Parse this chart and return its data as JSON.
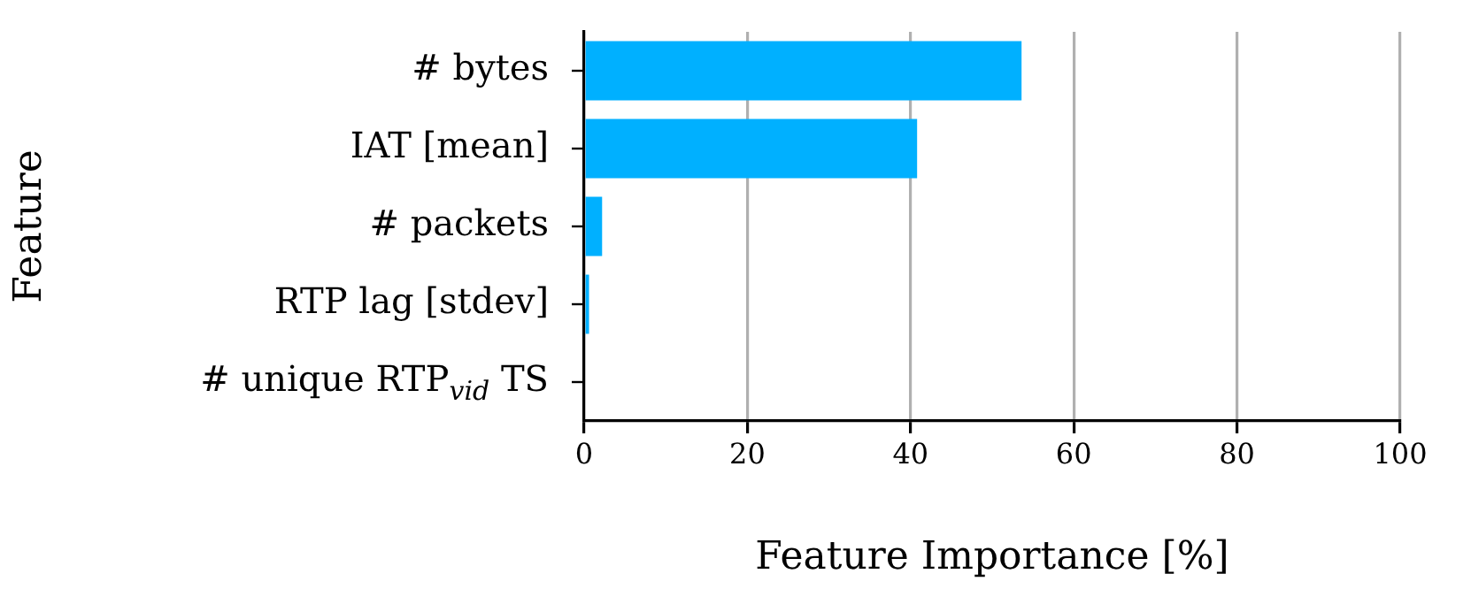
{
  "chart_data": {
    "type": "bar",
    "orientation": "horizontal",
    "categories": [
      "# bytes",
      "IAT [mean]",
      "# packets",
      "RTP lag [stdev]",
      "# unique RTP$_{vid}$ TS"
    ],
    "values": [
      53.6,
      40.8,
      2.2,
      0.6,
      null
    ],
    "color": "#00b0ff",
    "xlabel": "Feature Importance [%]",
    "ylabel": "Feature",
    "xlim": [
      0,
      100
    ],
    "xticks": [
      0,
      20,
      40,
      60,
      80,
      100
    ],
    "grid": "x",
    "legend": false
  }
}
